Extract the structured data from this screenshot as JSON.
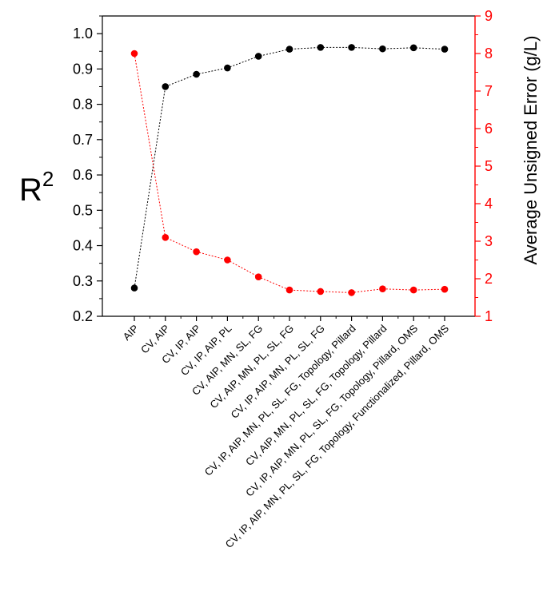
{
  "chart_data": {
    "type": "line",
    "categories": [
      "AIP",
      "CV, AIP",
      "CV, IP, AIP",
      "CV, IP, AIP, PL",
      "CV, AIP,  MN, SL, FG",
      "CV, AIP, MN, PL, SL, FG",
      "CV, IP, AIP, MN, PL, SL, FG",
      "CV, IP, AIP, MN, PL, SL, FG, Topology, Pillard",
      "CV, AIP, MN, PL, SL, FG, Topology, Pillard",
      "CV, IP, AIP, MN, PL, SL, FG, Topology, Pillard, OMS",
      "CV, IP, AIP, MN, PL, SL, FG, Topology, Functionalized, Pillard, OMS"
    ],
    "series": [
      {
        "axis": "left",
        "color": "#000000",
        "values": [
          0.28,
          0.85,
          0.885,
          0.903,
          0.936,
          0.956,
          0.961,
          0.961,
          0.957,
          0.96,
          0.956
        ]
      },
      {
        "axis": "right",
        "color": "#ff0000",
        "values": [
          8.0,
          3.1,
          2.72,
          2.5,
          2.05,
          1.7,
          1.66,
          1.63,
          1.73,
          1.7,
          1.72
        ]
      }
    ],
    "ylabel_left": "R²",
    "ylabel_right": "Average Unsigned Error (g/L)",
    "ylim_left": [
      0.2,
      1.05
    ],
    "yticks_left": [
      "0.2",
      "0.3",
      "0.4",
      "0.5",
      "0.6",
      "0.7",
      "0.8",
      "0.9",
      "1.0"
    ],
    "ylim_right": [
      1,
      9
    ],
    "yticks_right": [
      "1",
      "2",
      "3",
      "4",
      "5",
      "6",
      "7",
      "8",
      "9"
    ],
    "grid": false,
    "legend": "none"
  }
}
